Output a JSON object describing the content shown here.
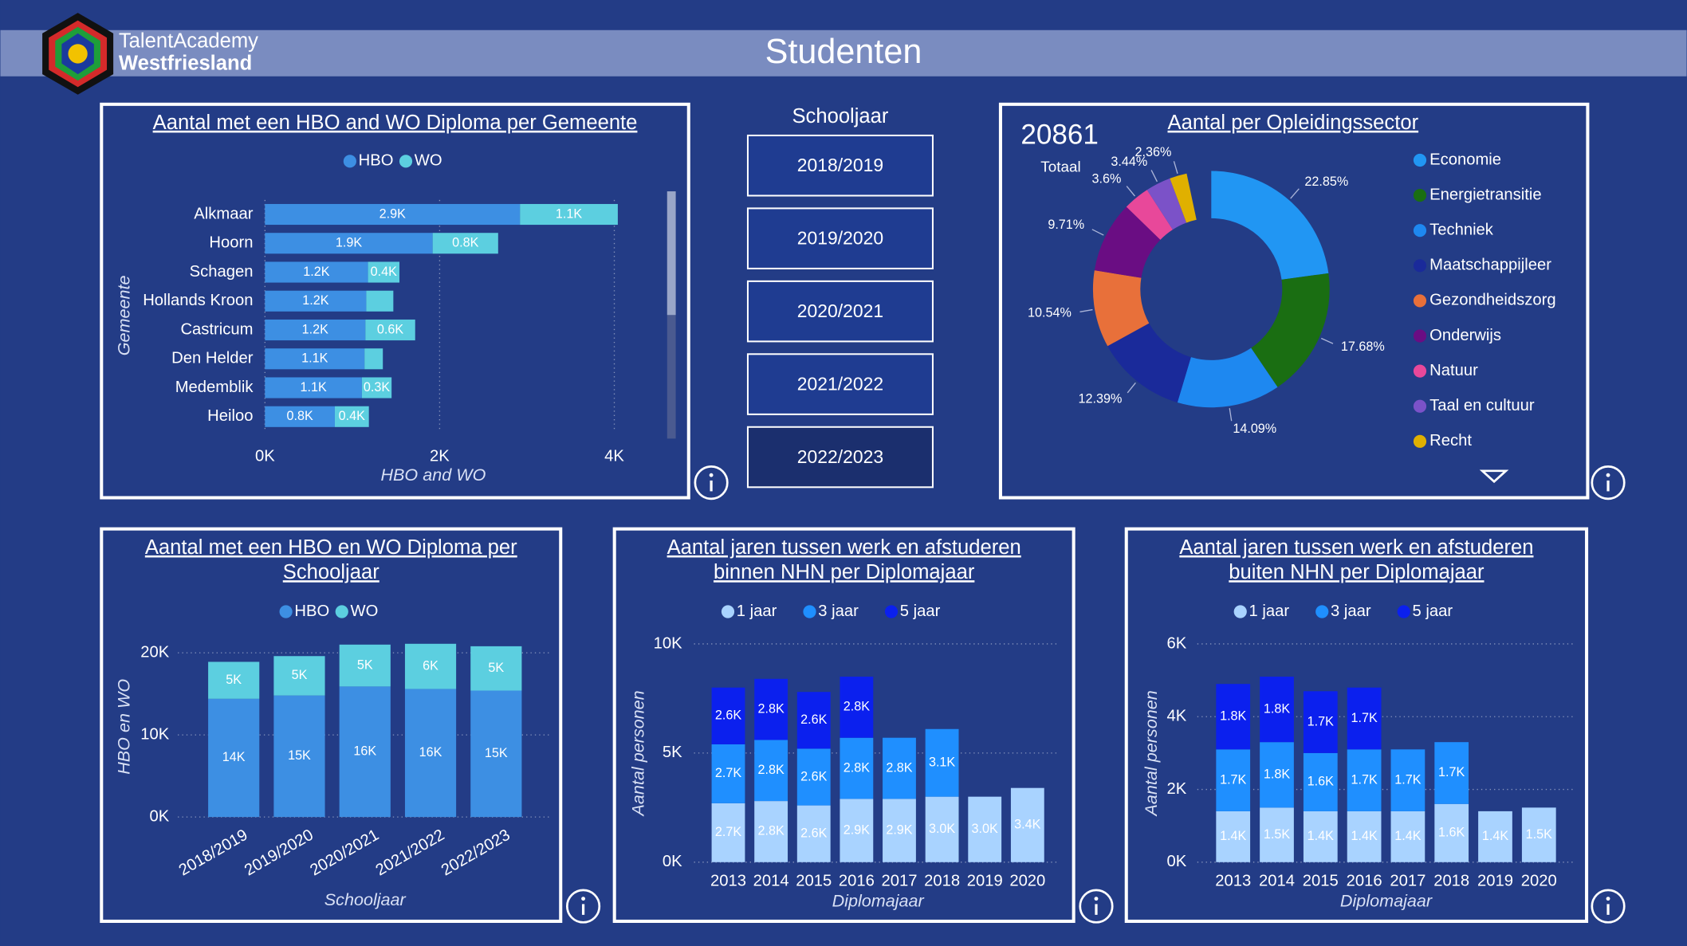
{
  "header": {
    "logo_line1": "TalentAcademy",
    "logo_line2": "Westfriesland",
    "title": "Studenten"
  },
  "slicer": {
    "title": "Schooljaar",
    "items": [
      "2018/2019",
      "2019/2020",
      "2020/2021",
      "2021/2022",
      "2022/2023"
    ]
  },
  "chart_data": [
    {
      "type": "bar",
      "orientation": "horizontal",
      "stacked": true,
      "title": "Aantal met een HBO and WO Diploma per Gemeente",
      "x_label": "HBO and WO",
      "y_label": "Gemeente",
      "categories": [
        "Alkmaar",
        "Hoorn",
        "Schagen",
        "Hollands Kroon",
        "Castricum",
        "Den Helder",
        "Medemblik",
        "Heiloo"
      ],
      "series": [
        {
          "name": "HBO",
          "color": "#3d8fe3",
          "values": [
            2920,
            1920,
            1180,
            1160,
            1150,
            1140,
            1110,
            800
          ],
          "value_labels": [
            "2.9K",
            "1.9K",
            "1.2K",
            "1.2K",
            "1.2K",
            "1.1K",
            "1.1K",
            "0.8K"
          ]
        },
        {
          "name": "WO",
          "color": "#5ccfe0",
          "values": [
            1120,
            750,
            360,
            310,
            570,
            210,
            340,
            390
          ],
          "value_labels": [
            "1.1K",
            "0.8K",
            "0.4K",
            null,
            "0.6K",
            null,
            "0.3K",
            "0.4K"
          ]
        }
      ],
      "xlim": [
        0,
        4100
      ],
      "xticks": [
        {
          "value": 0,
          "label": "0K"
        },
        {
          "value": 2000,
          "label": "2K"
        },
        {
          "value": 4000,
          "label": "4K"
        }
      ],
      "grid": true
    },
    {
      "type": "pie",
      "donut": true,
      "title": "Aantal per Opleidingssector",
      "total_value": "20861",
      "total_label": "Totaal",
      "categories": [
        "Economie",
        "Energietransitie",
        "Techniek",
        "Maatschappijleer",
        "Gezondheidszorg",
        "Onderwijs",
        "Natuur",
        "Taal en cultuur",
        "Recht"
      ],
      "values": [
        22.85,
        17.68,
        14.09,
        12.39,
        10.54,
        9.71,
        3.6,
        3.44,
        2.36
      ],
      "value_labels": [
        "22.85%",
        "17.68%",
        "14.09%",
        "12.39%",
        "10.54%",
        "9.71%",
        "3.6%",
        "3.44%",
        "2.36%"
      ],
      "colors": [
        "#2196f3",
        "#1a6e12",
        "#1e88f0",
        "#1a2a9a",
        "#e8703a",
        "#6a0d83",
        "#e8489a",
        "#7b52c8",
        "#e0b000"
      ]
    },
    {
      "type": "bar",
      "orientation": "vertical",
      "stacked": true,
      "title": "Aantal met een HBO en WO Diploma per Schooljaar",
      "x_label": "Schooljaar",
      "y_label": "HBO en WO",
      "categories": [
        "2018/2019",
        "2019/2020",
        "2020/2021",
        "2021/2022",
        "2022/2023"
      ],
      "series": [
        {
          "name": "HBO",
          "color": "#3d8fe3",
          "values": [
            14400,
            14800,
            15900,
            15600,
            15400
          ],
          "value_labels": [
            "14K",
            "15K",
            "16K",
            "16K",
            "15K"
          ]
        },
        {
          "name": "WO",
          "color": "#5ccfe0",
          "values": [
            4500,
            4800,
            5100,
            5500,
            5400
          ],
          "value_labels": [
            "5K",
            "5K",
            "5K",
            "6K",
            "5K"
          ]
        }
      ],
      "ylim": [
        0,
        22000
      ],
      "yticks": [
        {
          "value": 0,
          "label": "0K"
        },
        {
          "value": 10000,
          "label": "10K"
        },
        {
          "value": 20000,
          "label": "20K"
        }
      ],
      "grid": true
    },
    {
      "type": "bar",
      "orientation": "vertical",
      "stacked": true,
      "title": "Aantal jaren tussen werk en afstuderen binnen NHN per Diplomajaar",
      "x_label": "Diplomajaar",
      "y_label": "Aantal personen",
      "categories": [
        "2013",
        "2014",
        "2015",
        "2016",
        "2017",
        "2018",
        "2019",
        "2020"
      ],
      "series": [
        {
          "name": "1 jaar",
          "color": "#a9d3ff",
          "values": [
            2700,
            2800,
            2600,
            2900,
            2900,
            3000,
            3000,
            3400
          ],
          "value_labels": [
            "2.7K",
            "2.8K",
            "2.6K",
            "2.9K",
            "2.9K",
            "3.0K",
            "3.0K",
            "3.4K"
          ]
        },
        {
          "name": "3 jaar",
          "color": "#1f8fff",
          "values": [
            2700,
            2800,
            2600,
            2800,
            2800,
            3100,
            null,
            null
          ],
          "value_labels": [
            "2.7K",
            "2.8K",
            "2.6K",
            "2.8K",
            "2.8K",
            "3.1K",
            null,
            null
          ]
        },
        {
          "name": "5 jaar",
          "color": "#0b20ee",
          "values": [
            2600,
            2800,
            2600,
            2800,
            null,
            null,
            null,
            null
          ],
          "value_labels": [
            "2.6K",
            "2.8K",
            "2.6K",
            "2.8K",
            null,
            null,
            null,
            null
          ]
        }
      ],
      "ylim": [
        0,
        10000
      ],
      "yticks": [
        {
          "value": 0,
          "label": "0K"
        },
        {
          "value": 5000,
          "label": "5K"
        },
        {
          "value": 10000,
          "label": "10K"
        }
      ],
      "grid": true
    },
    {
      "type": "bar",
      "orientation": "vertical",
      "stacked": true,
      "title": "Aantal jaren tussen werk en afstuderen buiten NHN per Diplomajaar",
      "x_label": "Diplomajaar",
      "y_label": "Aantal personen",
      "categories": [
        "2013",
        "2014",
        "2015",
        "2016",
        "2017",
        "2018",
        "2019",
        "2020"
      ],
      "series": [
        {
          "name": "1 jaar",
          "color": "#a9d3ff",
          "values": [
            1400,
            1500,
            1400,
            1400,
            1400,
            1600,
            1400,
            1500
          ],
          "value_labels": [
            "1.4K",
            "1.5K",
            "1.4K",
            "1.4K",
            "1.4K",
            "1.6K",
            "1.4K",
            "1.5K"
          ]
        },
        {
          "name": "3 jaar",
          "color": "#1f8fff",
          "values": [
            1700,
            1800,
            1600,
            1700,
            1700,
            1700,
            null,
            null
          ],
          "value_labels": [
            "1.7K",
            "1.8K",
            "1.6K",
            "1.7K",
            "1.7K",
            "1.7K",
            null,
            null
          ]
        },
        {
          "name": "5 jaar",
          "color": "#0b20ee",
          "values": [
            1800,
            1800,
            1700,
            1700,
            null,
            null,
            null,
            null
          ],
          "value_labels": [
            "1.8K",
            "1.8K",
            "1.7K",
            "1.7K",
            null,
            null,
            null,
            null
          ]
        }
      ],
      "ylim": [
        0,
        6000
      ],
      "yticks": [
        {
          "value": 0,
          "label": "0K"
        },
        {
          "value": 2000,
          "label": "2K"
        },
        {
          "value": 4000,
          "label": "4K"
        },
        {
          "value": 6000,
          "label": "6K"
        }
      ],
      "grid": true
    }
  ]
}
